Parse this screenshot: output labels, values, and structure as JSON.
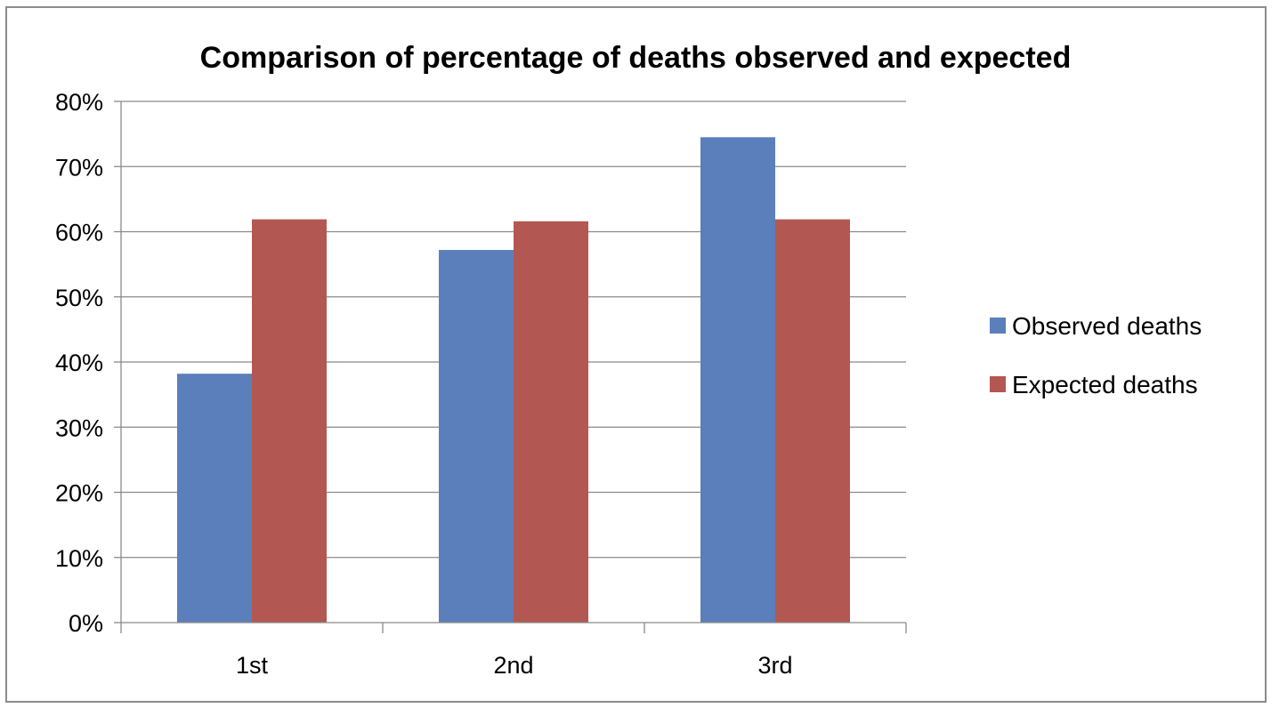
{
  "chart_data": {
    "type": "bar",
    "title": "Comparison of percentage of deaths observed and expected",
    "categories": [
      "1st",
      "2nd",
      "3rd"
    ],
    "series": [
      {
        "name": "Observed deaths",
        "color": "#5b7fba",
        "values": [
          38.2,
          57.2,
          74.5
        ]
      },
      {
        "name": "Expected deaths",
        "color": "#b35752",
        "values": [
          61.9,
          61.6,
          61.9
        ]
      }
    ],
    "yaxis": {
      "min": 0,
      "max": 80,
      "step": 10,
      "tick_labels": [
        "0%",
        "10%",
        "20%",
        "30%",
        "40%",
        "50%",
        "60%",
        "70%",
        "80%"
      ]
    },
    "xlabel": "",
    "ylabel": "",
    "grid": true,
    "legend_position": "right"
  }
}
